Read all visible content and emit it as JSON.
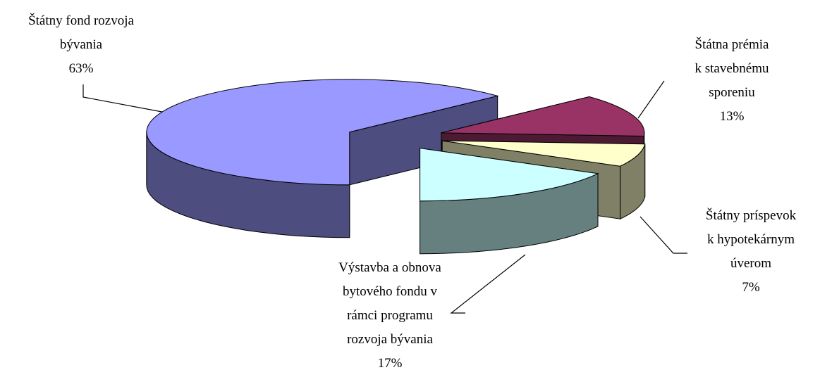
{
  "chart_data": {
    "type": "pie",
    "categories": [
      "Štátny fond rozvoja\nbývania",
      "Štátna prémia\nk stavebnému\nsporeniu",
      "Štátny príspevok\nk hypotekárnym\núverom",
      "Výstavba a obnova\nbytového fondu v\nrámci programu\nrozvoja bývania"
    ],
    "values": [
      63,
      13,
      7,
      17
    ],
    "value_labels": [
      "63%",
      "13%",
      "7%",
      "17%"
    ],
    "colors": [
      "#9999ff",
      "#993366",
      "#ffffcc",
      "#ccffff"
    ]
  }
}
